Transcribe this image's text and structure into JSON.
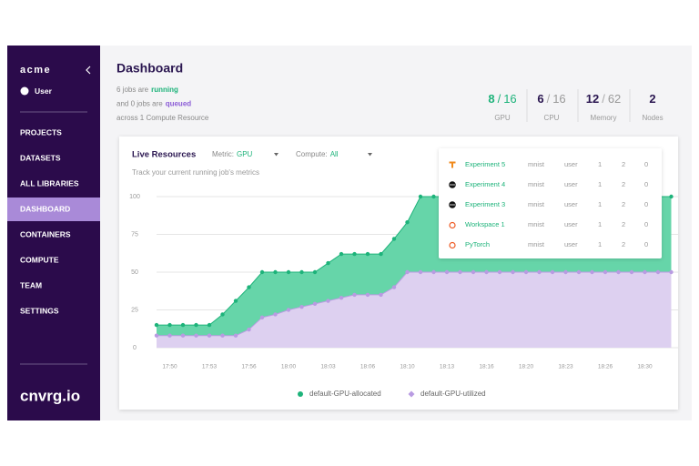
{
  "sidebar": {
    "org": "acme",
    "user": "User",
    "menu": [
      "PROJECTS",
      "DATASETS",
      "ALL LIBRARIES",
      "DASHBOARD",
      "CONTAINERS",
      "COMPUTE",
      "TEAM",
      "SETTINGS"
    ],
    "active": "DASHBOARD",
    "logo": "cnvrg.io"
  },
  "header": {
    "title": "Dashboard",
    "summary": [
      [
        "6 jobs are",
        "running"
      ],
      [
        "and 0 jobs are",
        "queued"
      ],
      [
        "across 1 Compute Resource"
      ]
    ]
  },
  "stats": [
    {
      "used": 8,
      "total": 16,
      "label": "GPU"
    },
    {
      "used": 6,
      "total": 16,
      "label": "CPU"
    },
    {
      "used": 12,
      "total": 62,
      "label": "Memory"
    },
    {
      "value": 2,
      "label": "Nodes"
    }
  ],
  "stats_separator": "/",
  "panel": {
    "title": "Live Resources",
    "metric_label": "Metric:",
    "metric": "GPU",
    "compute_label": "Compute:",
    "compute": "All",
    "subtitle": "Track your current running job's metrics"
  },
  "chart_data": {
    "type": "area",
    "categories": [
      null,
      "17:50",
      null,
      null,
      "17:53",
      null,
      null,
      "17:56",
      null,
      null,
      "18:00",
      null,
      null,
      "18:03",
      null,
      null,
      "18:06",
      null,
      null,
      "18:10",
      null,
      null,
      "18:13",
      null,
      null,
      "18:16",
      null,
      null,
      "18:20",
      null,
      null,
      "18:23",
      null,
      null,
      "18:26",
      null,
      null,
      "18:30",
      null,
      null
    ],
    "series": [
      {
        "name": "default-GPU-allocated",
        "color": "#1db37a",
        "fill": "#66d5a9",
        "values": [
          15,
          15,
          15,
          15,
          15,
          22,
          31,
          40,
          50,
          50,
          50,
          50,
          50,
          56,
          62,
          62,
          62,
          62,
          72,
          83,
          100,
          100,
          100,
          100,
          100,
          100,
          100,
          100,
          100,
          100,
          100,
          100,
          100,
          100,
          100,
          100,
          100,
          100,
          100,
          100
        ]
      },
      {
        "name": "default-GPU-utilized",
        "color": "#b99be2",
        "fill": "#ddd0f0",
        "values": [
          8,
          8,
          8,
          8,
          8,
          8,
          8,
          12,
          20,
          22,
          25,
          27,
          29,
          31,
          33,
          35,
          35,
          35,
          40,
          50,
          50,
          50,
          50,
          50,
          50,
          50,
          50,
          50,
          50,
          50,
          50,
          50,
          50,
          50,
          50,
          50,
          50,
          50,
          50,
          50
        ]
      }
    ],
    "ylim": [
      0,
      100
    ],
    "yticks": [
      0,
      25,
      50,
      75,
      100
    ],
    "grid": true
  },
  "jobs": {
    "rows": [
      [
        "Experiment 5",
        "mnist",
        "user",
        1,
        2,
        0
      ],
      [
        "Experiment 4",
        "mnist",
        "user",
        1,
        2,
        0
      ],
      [
        "Experiment 3",
        "mnist",
        "user",
        1,
        2,
        0
      ],
      [
        "Workspace 1",
        "mnist",
        "user",
        1,
        2,
        0
      ],
      [
        "PyTorch",
        "mnist",
        "user",
        1,
        2,
        0
      ]
    ]
  }
}
